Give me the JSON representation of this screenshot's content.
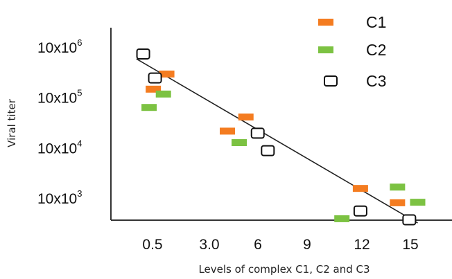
{
  "chart_data": {
    "type": "scatter",
    "xlabel": "Levels of complex C1, C2 and C3",
    "ylabel": "Viral titer",
    "x_tick_labels": [
      "0.5",
      "3.0",
      "6",
      "9",
      "12",
      "15"
    ],
    "y_ticks": [
      {
        "base": "10x10",
        "exp": "3",
        "value": 10000
      },
      {
        "base": "10x10",
        "exp": "4",
        "value": 100000
      },
      {
        "base": "10x10",
        "exp": "5",
        "value": 1000000
      },
      {
        "base": "10x10",
        "exp": "6",
        "value": 10000000
      }
    ],
    "y_scale": "log",
    "legend_position": "top-right",
    "grid": false,
    "series": [
      {
        "name": "C1",
        "color": "#f47c20",
        "marker": "filled-rect",
        "points": [
          {
            "x": 0.3,
            "y": 1500000
          },
          {
            "x": 1.1,
            "y": 3000000
          },
          {
            "x": 4.7,
            "y": 220000
          },
          {
            "x": 5.8,
            "y": 420000
          },
          {
            "x": 12.6,
            "y": 16000
          },
          {
            "x": 14.8,
            "y": 8300
          }
        ]
      },
      {
        "name": "C2",
        "color": "#7cc242",
        "marker": "filled-rect",
        "points": [
          {
            "x": 0.05,
            "y": 650000
          },
          {
            "x": 0.9,
            "y": 1200000
          },
          {
            "x": 5.4,
            "y": 130000
          },
          {
            "x": 11.5,
            "y": 4000
          },
          {
            "x": 14.8,
            "y": 17000
          },
          {
            "x": 16.0,
            "y": 8500
          }
        ]
      },
      {
        "name": "C3",
        "color": "#111111",
        "marker": "open-rect",
        "points": [
          {
            "x": -0.3,
            "y": 7500000
          },
          {
            "x": 0.4,
            "y": 2500000
          },
          {
            "x": 6.5,
            "y": 200000
          },
          {
            "x": 7.1,
            "y": 90000
          },
          {
            "x": 12.6,
            "y": 5700
          },
          {
            "x": 15.5,
            "y": 3800
          }
        ]
      }
    ],
    "trendline": {
      "x": [
        -0.7,
        16.0
      ],
      "y": [
        6000000,
        3300
      ]
    }
  }
}
